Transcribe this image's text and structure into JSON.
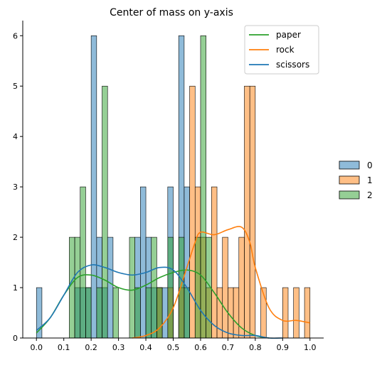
{
  "chart_data": {
    "type": "histogram",
    "title": "Center of mass on y-axis",
    "xlabel": "",
    "ylabel": "",
    "xlim": [
      -0.05,
      1.05
    ],
    "ylim": [
      0,
      6.3
    ],
    "x_ticks": [
      "0.0",
      "0.1",
      "0.2",
      "0.3",
      "0.4",
      "0.5",
      "0.6",
      "0.7",
      "0.8",
      "0.9",
      "1.0"
    ],
    "y_ticks": [
      "0",
      "1",
      "2",
      "3",
      "4",
      "5",
      "6"
    ],
    "bin_width": 0.02,
    "grid": false,
    "hist_legend": {
      "placement": "right",
      "entries": [
        {
          "label": "0",
          "color": "#1f77b4"
        },
        {
          "label": "1",
          "color": "#ff7f0e"
        },
        {
          "label": "2",
          "color": "#2ca02c"
        }
      ]
    },
    "hist_series": [
      {
        "label": "0",
        "color": "#1f77b4",
        "bins": [
          [
            0.0,
            1
          ],
          [
            0.14,
            1
          ],
          [
            0.16,
            1
          ],
          [
            0.18,
            1
          ],
          [
            0.2,
            6
          ],
          [
            0.22,
            2
          ],
          [
            0.24,
            1
          ],
          [
            0.26,
            2
          ],
          [
            0.36,
            2
          ],
          [
            0.38,
            3
          ],
          [
            0.4,
            2
          ],
          [
            0.42,
            1
          ],
          [
            0.44,
            1
          ],
          [
            0.46,
            1
          ],
          [
            0.48,
            3
          ],
          [
            0.52,
            6
          ],
          [
            0.54,
            3
          ]
        ]
      },
      {
        "label": "1",
        "color": "#ff7f0e",
        "bins": [
          [
            0.44,
            1
          ],
          [
            0.48,
            1
          ],
          [
            0.52,
            1
          ],
          [
            0.56,
            5
          ],
          [
            0.58,
            3
          ],
          [
            0.6,
            2
          ],
          [
            0.62,
            1
          ],
          [
            0.64,
            3
          ],
          [
            0.66,
            1
          ],
          [
            0.68,
            2
          ],
          [
            0.7,
            1
          ],
          [
            0.72,
            1
          ],
          [
            0.74,
            2
          ],
          [
            0.76,
            5
          ],
          [
            0.78,
            5
          ],
          [
            0.82,
            1
          ],
          [
            0.9,
            1
          ],
          [
            0.94,
            1
          ],
          [
            0.98,
            1
          ]
        ]
      },
      {
        "label": "2",
        "color": "#2ca02c",
        "bins": [
          [
            0.12,
            2
          ],
          [
            0.14,
            2
          ],
          [
            0.16,
            3
          ],
          [
            0.18,
            1
          ],
          [
            0.22,
            1
          ],
          [
            0.24,
            5
          ],
          [
            0.28,
            1
          ],
          [
            0.34,
            2
          ],
          [
            0.36,
            1
          ],
          [
            0.4,
            1
          ],
          [
            0.42,
            2
          ],
          [
            0.44,
            1
          ],
          [
            0.48,
            2
          ],
          [
            0.52,
            2
          ],
          [
            0.54,
            1
          ],
          [
            0.58,
            2
          ],
          [
            0.6,
            6
          ],
          [
            0.62,
            2
          ]
        ]
      }
    ],
    "kde_legend": {
      "placement": "top-right",
      "entries": [
        {
          "label": "paper",
          "color": "#2ca02c"
        },
        {
          "label": "rock",
          "color": "#ff7f0e"
        },
        {
          "label": "scissors",
          "color": "#1f77b4"
        }
      ]
    },
    "kde_series": [
      {
        "label": "paper",
        "color": "#2ca02c",
        "x": [
          0.0,
          0.05,
          0.1,
          0.15,
          0.2,
          0.25,
          0.3,
          0.35,
          0.4,
          0.45,
          0.5,
          0.55,
          0.6,
          0.65,
          0.7,
          0.75,
          0.8,
          0.85
        ],
        "y": [
          0.1,
          0.4,
          0.85,
          1.2,
          1.25,
          1.15,
          1.0,
          0.95,
          1.05,
          1.2,
          1.3,
          1.35,
          1.25,
          0.9,
          0.5,
          0.2,
          0.05,
          0.0
        ]
      },
      {
        "label": "rock",
        "color": "#ff7f0e",
        "x": [
          0.35,
          0.4,
          0.45,
          0.5,
          0.55,
          0.58,
          0.6,
          0.65,
          0.7,
          0.75,
          0.78,
          0.8,
          0.85,
          0.9,
          0.95,
          1.0
        ],
        "y": [
          0.0,
          0.05,
          0.2,
          0.6,
          1.4,
          1.9,
          2.1,
          2.05,
          2.15,
          2.2,
          1.9,
          1.4,
          0.6,
          0.35,
          0.35,
          0.3
        ]
      },
      {
        "label": "scissors",
        "color": "#1f77b4",
        "x": [
          0.0,
          0.05,
          0.1,
          0.15,
          0.2,
          0.25,
          0.3,
          0.35,
          0.4,
          0.45,
          0.5,
          0.55,
          0.6,
          0.65,
          0.7,
          0.75,
          0.8,
          0.85,
          0.9
        ],
        "y": [
          0.15,
          0.4,
          0.85,
          1.3,
          1.45,
          1.4,
          1.3,
          1.25,
          1.3,
          1.4,
          1.35,
          1.0,
          0.55,
          0.25,
          0.1,
          0.05,
          0.05,
          0.0,
          0.0
        ]
      }
    ]
  }
}
